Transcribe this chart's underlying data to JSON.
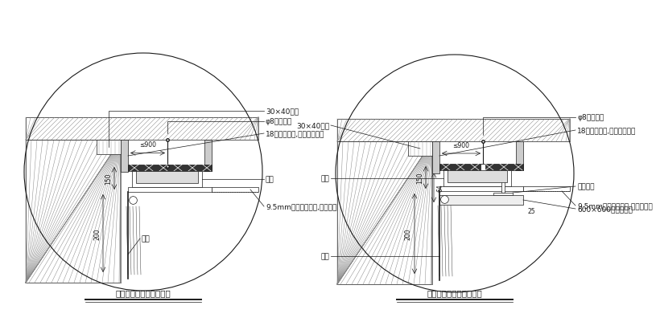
{
  "bg_color": "#ffffff",
  "title_left": "石膏板吊顶窗帘盒剖面图",
  "title_right": "矿棉板吊顶窗帘盒剖面图",
  "left_labels": {
    "wood_beam": "30×40木方",
    "hanger": "φ8镀锌吊杆",
    "board": "18厚细木工板,防腐防火处理",
    "dim_900": "≤900",
    "slide": "滑道",
    "dim_150": "150",
    "dim_200": "200",
    "gypsum": "9.5mm厚石膏板吊顶,白色乳胶漆",
    "curtain": "窗帘"
  },
  "right_labels": {
    "wood_beam": "30×40木方",
    "hanger": "φ8镀锌吊杆",
    "board": "18厚细木工板,防腐防火处理",
    "dim_900": "≤900",
    "slide": "滑道",
    "light_steel": "轻钢龙骨",
    "mineral_board": "600×600矿棉吸音板",
    "dim_150": "150",
    "dim_64": "64",
    "dim_200": "200",
    "dim_25": "25",
    "gypsum": "9.5mm厚石膏板吊顶,白色乳胶漆",
    "curtain": "窗帘"
  }
}
